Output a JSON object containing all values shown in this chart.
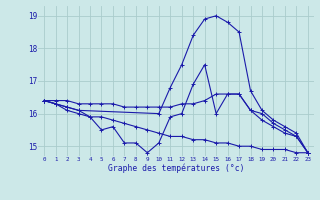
{
  "title": "Graphe des températures (°c)",
  "background_color": "#cce8e8",
  "grid_color": "#aacccc",
  "line_color": "#1a1aaa",
  "xlim": [
    -0.5,
    23.5
  ],
  "ylim": [
    14.7,
    19.3
  ],
  "yticks": [
    15,
    16,
    17,
    18,
    19
  ],
  "xticks": [
    0,
    1,
    2,
    3,
    4,
    5,
    6,
    7,
    8,
    9,
    10,
    11,
    12,
    13,
    14,
    15,
    16,
    17,
    18,
    19,
    20,
    21,
    22,
    23
  ],
  "series": [
    {
      "x": [
        0,
        1,
        2,
        3,
        4,
        5,
        6,
        7,
        8,
        9,
        10,
        11,
        12,
        13,
        14,
        15,
        16,
        17,
        18,
        19,
        20,
        21,
        22,
        23
      ],
      "y": [
        16.4,
        16.3,
        16.1,
        16.0,
        15.9,
        15.5,
        15.6,
        15.1,
        15.1,
        14.8,
        15.1,
        15.9,
        16.0,
        16.9,
        17.5,
        16.0,
        16.6,
        16.6,
        16.1,
        15.8,
        15.6,
        15.4,
        15.3,
        14.8
      ]
    },
    {
      "x": [
        0,
        1,
        2,
        3,
        4,
        5,
        6,
        7,
        8,
        9,
        10,
        11,
        12,
        13,
        14,
        15,
        16,
        17,
        18,
        19,
        20,
        21,
        22,
        23
      ],
      "y": [
        16.4,
        16.4,
        16.4,
        16.3,
        16.3,
        16.3,
        16.3,
        16.2,
        16.2,
        16.2,
        16.2,
        16.2,
        16.3,
        16.3,
        16.4,
        16.6,
        16.6,
        16.6,
        16.1,
        16.0,
        15.7,
        15.5,
        15.3,
        14.8
      ]
    },
    {
      "x": [
        0,
        1,
        2,
        3,
        4,
        5,
        6,
        7,
        8,
        9,
        10,
        11,
        12,
        13,
        14,
        15,
        16,
        17,
        18,
        19,
        20,
        21,
        22,
        23
      ],
      "y": [
        16.4,
        16.3,
        16.2,
        16.1,
        15.9,
        15.9,
        15.8,
        15.7,
        15.6,
        15.5,
        15.4,
        15.3,
        15.3,
        15.2,
        15.2,
        15.1,
        15.1,
        15.0,
        15.0,
        14.9,
        14.9,
        14.9,
        14.8,
        14.8
      ]
    },
    {
      "x": [
        0,
        1,
        2,
        3,
        10,
        11,
        12,
        13,
        14,
        15,
        16,
        17,
        18,
        19,
        20,
        21,
        22,
        23
      ],
      "y": [
        16.4,
        16.3,
        16.2,
        16.1,
        16.0,
        16.8,
        17.5,
        18.4,
        18.9,
        19.0,
        18.8,
        18.5,
        16.7,
        16.1,
        15.8,
        15.6,
        15.4,
        14.8
      ]
    }
  ]
}
